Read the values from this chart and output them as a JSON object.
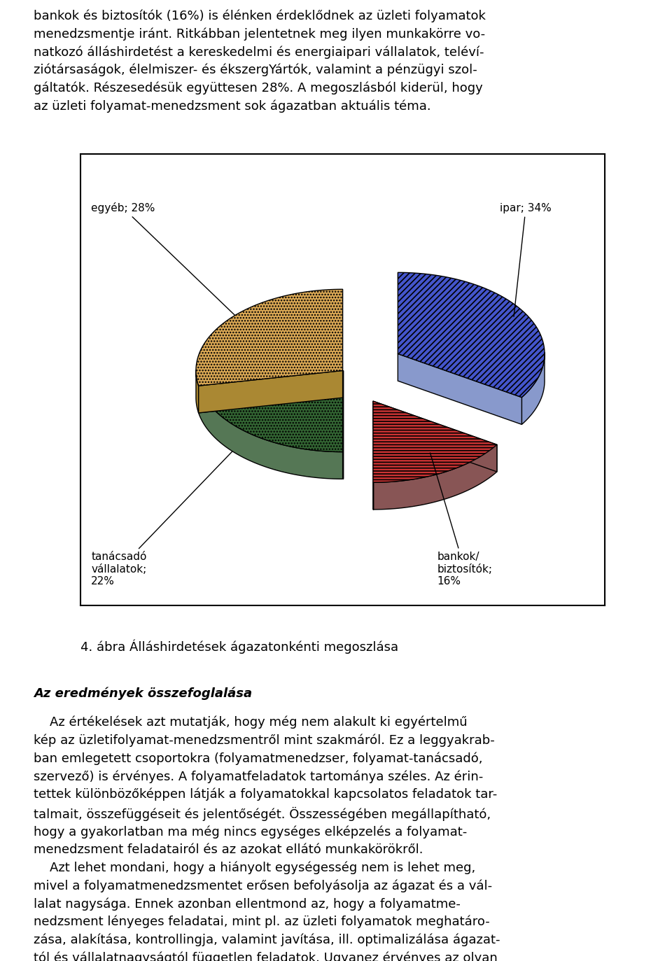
{
  "intro_text": "bankok és biztosítók (16%) is élénken érdeklődnek az üzleti folyamatok\nmenedzsmentje iránt. Ritkábban jelentetnek meg ilyen munkakörre vo-\nnatkozó álláshirdetést a kereskedelmi és energiaipari vállalatok, teléví-\nziótársaságok, élelmiszer- és ékszergYártók, valamint a pénzügyi szol-\ngáltatók. Részesedésük együttesen 28%. A megoszlásból kiderül, hogy\naz üzleti folyamat-menedzsment sok ágazatban aktuális téma.",
  "caption": "4. ábra Álláshirdetések ágazatonkénti megoszlása",
  "section_title": "Az eredmények összefoglalása",
  "body_text": "    Az értékelések azt mutatják, hogy még nem alakult ki egyértelmű\nkép az üzletifolyamat-menedzsmentről mint szakmáról. Ez a leggyakrab-\nban emlegetett csoportokra (folyamatmenedzser, folyamat-tanácsadó,\nszervező) is érvényes. A folyamatfeladatok tartománya széles. Az érin-\ntettek különbözőképpen látják a folyamatokkal kapcsolatos feladatok tar-\ntalmait, összefüggéseit és jelentőségét. Összességében megállapítható,\nhogy a gyakorlatban ma még nincs egységes elképzelés a folyamat-\nmenedzsment feladatairól és az azokat ellátó munkakörökről.\n    Azt lehet mondani, hogy a hiányolt egységesség nem is lehet meg,\nmivel a folyamatmenedzsmentet erősen befolyásolja az ágazat és a vál-\nlalat nagysága. Ennek azonban ellentmond az, hogy a folyamatme-\nnedzsment lényeges feladatai, mint pl. az üzleti folyamatok meghatáro-\nzása, alakítása, kontrollingja, valamint javítása, ill. optimalizálása ágazat-\ntól és vállalatnagyságtól független feladatok. Ugyanez érvényes az olyan\nmunkakörökre is, mint folyamat-tanácsadó, folyamatfelelős és folyamat-\nkoordinatór. A különbség abban van, hogy hogyan szervezik meg a",
  "slices": [
    {
      "label": "ipar; 34%",
      "pct": 34,
      "color": "#4455cc",
      "hatch": "////",
      "side_color": "#8899cc"
    },
    {
      "label": "bankok/\nbiztosítók;\n16%",
      "pct": 16,
      "color": "#cc3333",
      "hatch": "----",
      "side_color": "#885555"
    },
    {
      "label": "tanácsadó\nvállalatok;\n22%",
      "pct": 22,
      "color": "#336633",
      "hatch": "....",
      "side_color": "#557755"
    },
    {
      "label": "egyéb; 28%",
      "pct": 28,
      "color": "#ddaa55",
      "hatch": "....",
      "side_color": "#aa8833"
    }
  ],
  "explode_dist": 0.12,
  "background_color": "#ffffff",
  "text_color": "#000000",
  "intro_fontsize": 13,
  "caption_fontsize": 13,
  "section_fontsize": 13,
  "body_fontsize": 13
}
